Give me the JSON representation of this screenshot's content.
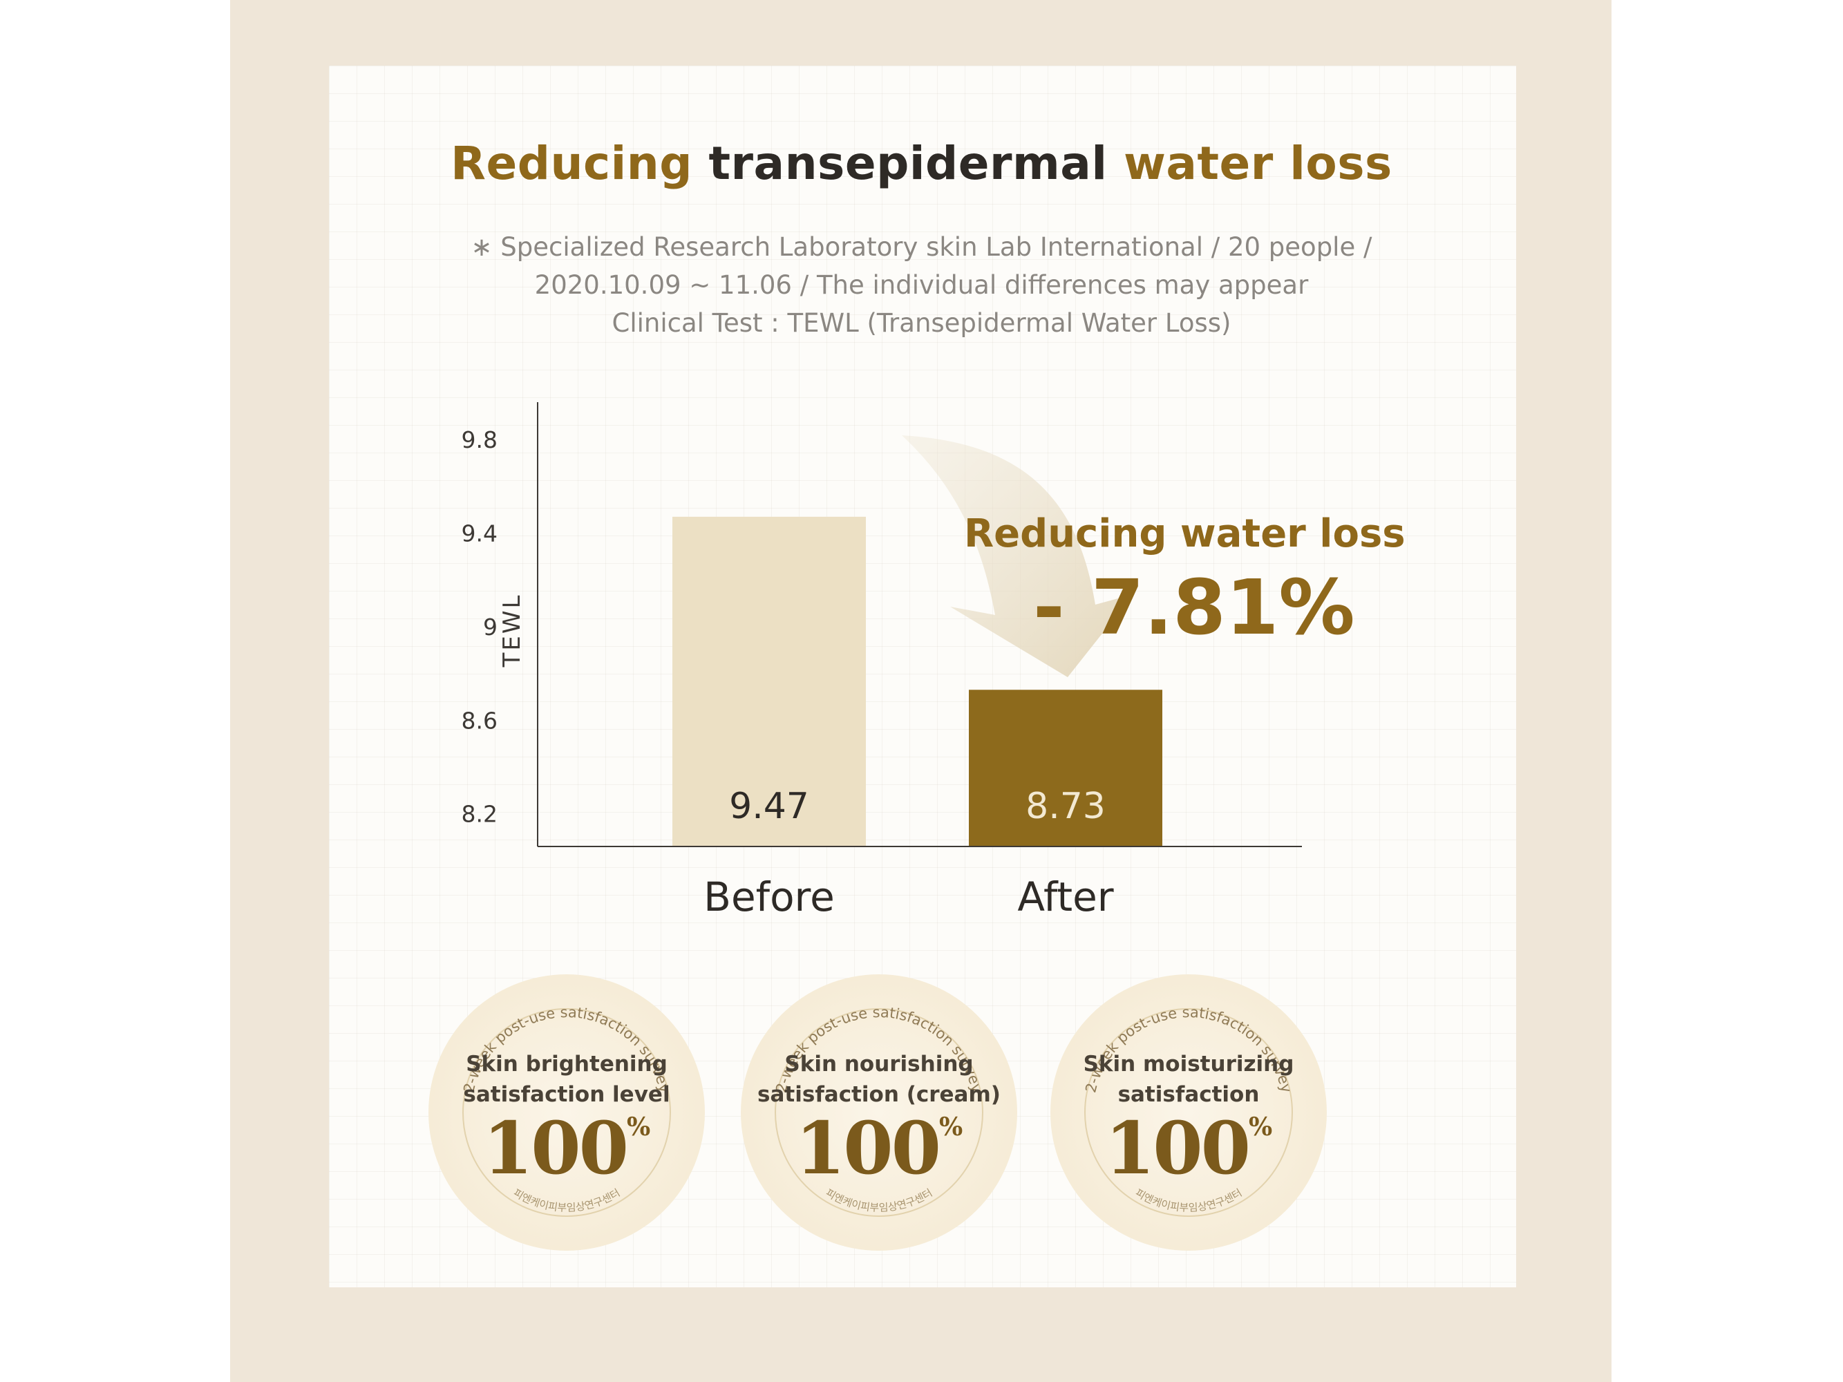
{
  "heading": {
    "part1": "Reducing",
    "part2": "transepidermal",
    "part3": "water loss"
  },
  "notes": {
    "line1": "∗ Specialized Research Laboratory skin Lab International / 20 people /",
    "line2": "2020.10.09 ~ 11.06 / The individual differences may appear",
    "line3": "Clinical Test : TEWL (Transepidermal Water Loss)"
  },
  "chart_data": {
    "type": "bar",
    "categories": [
      "Before",
      "After"
    ],
    "values": [
      9.47,
      8.73
    ],
    "value_labels": [
      "9.47",
      "8.73"
    ],
    "ylabel": "TEWL",
    "yticks": [
      "9.8",
      "9.4",
      "9",
      "8.6",
      "8.2"
    ],
    "ylim": [
      8.06,
      9.96
    ],
    "colors": [
      "#ece0c4",
      "#8d6a1c"
    ],
    "value_label_colors": [
      "#2e2a26",
      "#f3e9d2"
    ]
  },
  "callout": {
    "title": "Reducing water loss",
    "value": "- 7.81%"
  },
  "badges": [
    {
      "arc_text": "2-week post-use satisfaction survey",
      "line1": "Skin brightening",
      "line2": "satisfaction level",
      "value": "100",
      "unit": "%",
      "bottom_text": "피엔케이피부임상연구센터"
    },
    {
      "arc_text": "2-week post-use satisfaction survey",
      "line1": "Skin nourishing",
      "line2": "satisfaction (cream)",
      "value": "100",
      "unit": "%",
      "bottom_text": "피엔케이피부임상연구센터"
    },
    {
      "arc_text": "2-week post-use satisfaction survey",
      "line1": "Skin moisturizing",
      "line2": "satisfaction",
      "value": "100",
      "unit": "%",
      "bottom_text": "피엔케이피부임상연구센터"
    }
  ]
}
